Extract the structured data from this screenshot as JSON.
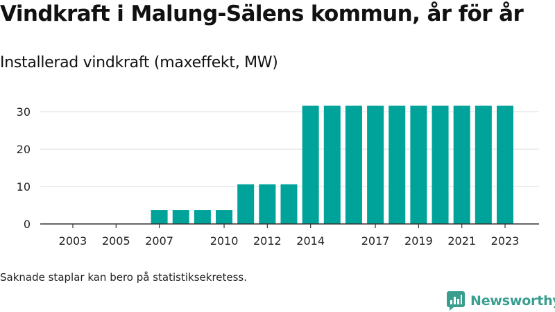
{
  "title": "Vindkraft i Malung-Sälens kommun, år för år",
  "subtitle": "Installerad vindkraft (maxeffekt, MW)",
  "footnote": "Saknade staplar kan bero på statistiksekretess.",
  "brand": {
    "name": "Newsworthy",
    "color": "#3a9e8f"
  },
  "colors": {
    "bar": "#00a39a",
    "grid": "#dddddd",
    "axis": "#333333",
    "tick_text": "#222222"
  },
  "chart_data": {
    "type": "bar",
    "title": "Installerad vindkraft (maxeffekt, MW)",
    "xlabel": "",
    "ylabel": "",
    "categories": [
      "2003",
      "2004",
      "2005",
      "2006",
      "2007",
      "2008",
      "2009",
      "2010",
      "2011",
      "2012",
      "2013",
      "2014",
      "2015",
      "2016",
      "2017",
      "2018",
      "2019",
      "2020",
      "2021",
      "2022",
      "2023"
    ],
    "values": [
      0,
      0,
      0,
      0,
      3.7,
      3.7,
      3.7,
      3.7,
      10.6,
      10.6,
      10.6,
      31.6,
      31.6,
      31.6,
      31.6,
      31.6,
      31.6,
      31.6,
      31.6,
      31.6,
      31.6
    ],
    "x_tick_labels": [
      "2003",
      "2005",
      "2007",
      "2010",
      "2012",
      "2014",
      "2017",
      "2019",
      "2021",
      "2023"
    ],
    "y_ticks": [
      0,
      10,
      20,
      30
    ],
    "ylim": [
      0,
      33
    ],
    "grid": true,
    "legend": "none"
  }
}
